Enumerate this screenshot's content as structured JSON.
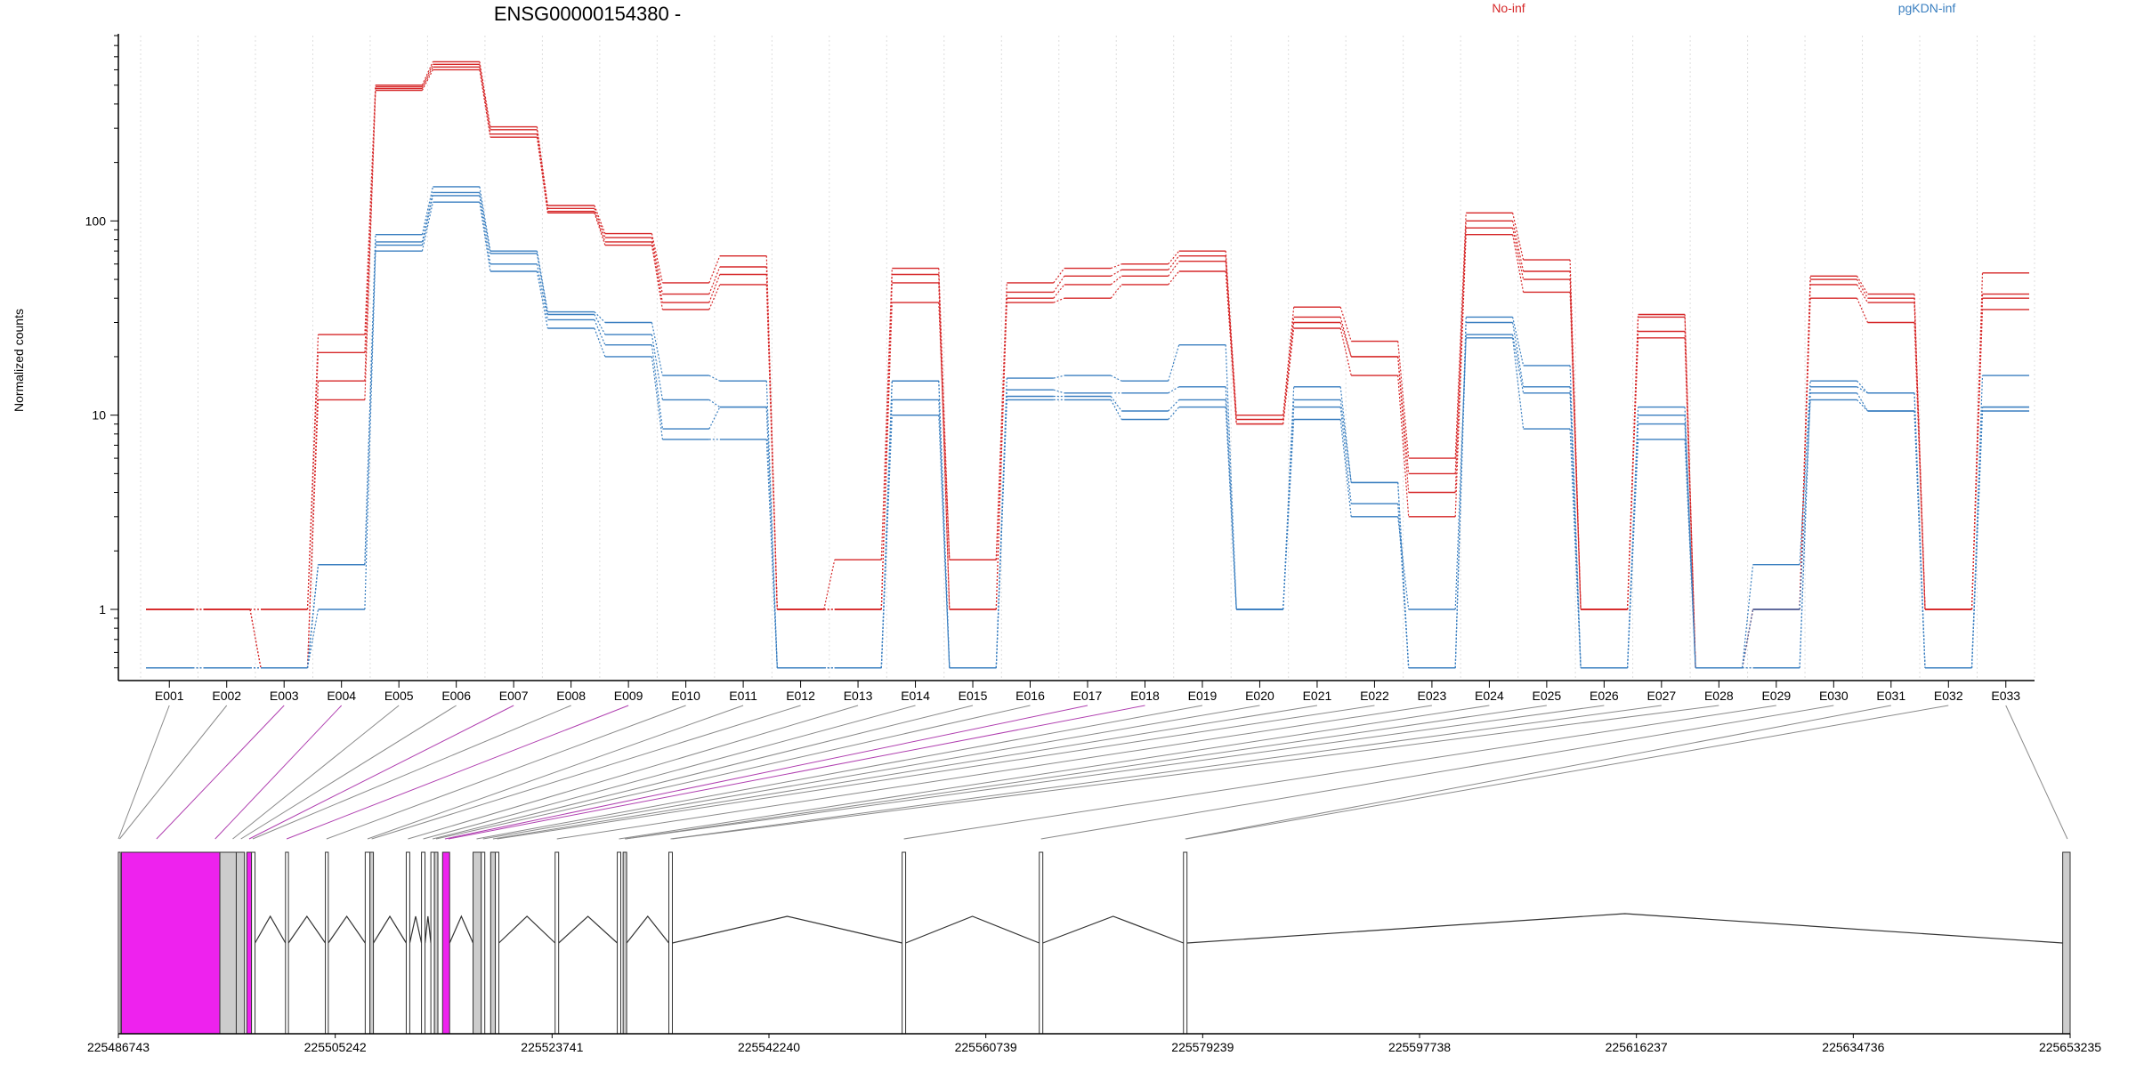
{
  "chart_data": {
    "type": "line",
    "title": "ENSG00000154380 -",
    "xlabel": "",
    "ylabel": "Normalized counts",
    "y_scale": "log",
    "ylim": [
      0.5,
      900
    ],
    "y_ticks": [
      {
        "value": 1,
        "label": "1"
      },
      {
        "value": 10,
        "label": "10"
      },
      {
        "value": 100,
        "label": "100"
      }
    ],
    "grid": "vertical-dotted",
    "legend_placement": "top",
    "legend": [
      {
        "label": "No-inf",
        "color": "#d62728"
      },
      {
        "label": "pgKDN-inf",
        "color": "#3a7fc0"
      }
    ],
    "categories": [
      "E001",
      "E002",
      "E003",
      "E004",
      "E005",
      "E006",
      "E007",
      "E008",
      "E009",
      "E010",
      "E011",
      "E012",
      "E013",
      "E014",
      "E015",
      "E016",
      "E017",
      "E018",
      "E019",
      "E020",
      "E021",
      "E022",
      "E023",
      "E024",
      "E025",
      "E026",
      "E027",
      "E028",
      "E029",
      "E030",
      "E031",
      "E032",
      "E033"
    ],
    "series": [
      {
        "group": "No-inf",
        "color": "#d62728",
        "values": [
          1,
          1,
          0.5,
          12,
          470,
          600,
          270,
          110,
          75,
          35,
          47,
          1,
          1,
          38,
          1.8,
          38,
          40,
          47,
          55,
          9,
          28,
          16,
          3,
          85,
          43,
          1,
          25,
          0.5,
          1,
          40,
          30,
          1,
          35
        ]
      },
      {
        "group": "No-inf",
        "color": "#d62728",
        "values": [
          1,
          1,
          0.5,
          15,
          480,
          620,
          280,
          112,
          78,
          38,
          53,
          1,
          1,
          48,
          1,
          40,
          47,
          52,
          62,
          9,
          30,
          20,
          4,
          92,
          50,
          1,
          27,
          0.5,
          1,
          47,
          38,
          1,
          40
        ]
      },
      {
        "group": "No-inf",
        "color": "#d62728",
        "values": [
          1,
          1,
          1,
          21,
          490,
          640,
          295,
          116,
          82,
          42,
          58,
          1,
          1,
          53,
          1,
          43,
          52,
          56,
          66,
          9.5,
          32,
          20,
          5,
          100,
          55,
          1,
          32,
          0.5,
          1,
          50,
          40,
          1,
          42
        ]
      },
      {
        "group": "No-inf",
        "color": "#d62728",
        "values": [
          1,
          1,
          1,
          26,
          500,
          660,
          305,
          120,
          86,
          48,
          66,
          1,
          1.8,
          57,
          1.8,
          48,
          57,
          60,
          70,
          10,
          36,
          24,
          6,
          110,
          63,
          1,
          33,
          0.5,
          1,
          52,
          42,
          1,
          54
        ]
      },
      {
        "group": "pgKDN-inf",
        "color": "#3a7fc0",
        "values": [
          0.5,
          0.5,
          0.5,
          1,
          70,
          125,
          55,
          28,
          20,
          7.5,
          7.5,
          0.5,
          0.5,
          10,
          0.5,
          12,
          12,
          9.5,
          11,
          1,
          9.5,
          3,
          1,
          25,
          8.5,
          0.5,
          7.5,
          0.5,
          1,
          12,
          10.5,
          0.5,
          10.5
        ]
      },
      {
        "group": "pgKDN-inf",
        "color": "#3a7fc0",
        "values": [
          0.5,
          0.5,
          0.5,
          1.7,
          75,
          135,
          60,
          31,
          23,
          8.5,
          11,
          0.5,
          0.5,
          12,
          0.5,
          12.5,
          12.5,
          10.5,
          12,
          1,
          11,
          3.5,
          0.5,
          26,
          13,
          0.5,
          9,
          0.5,
          0.5,
          13,
          10.5,
          0.5,
          11
        ]
      },
      {
        "group": "pgKDN-inf",
        "color": "#3a7fc0",
        "values": [
          0.5,
          0.5,
          0.5,
          1.7,
          78,
          140,
          68,
          33,
          26,
          12,
          11,
          0.5,
          0.5,
          15,
          0.5,
          13.5,
          13,
          13,
          14,
          1,
          12,
          4.5,
          0.5,
          30,
          14,
          0.5,
          10,
          0.5,
          0.5,
          14,
          13,
          0.5,
          11
        ]
      },
      {
        "group": "pgKDN-inf",
        "color": "#3a7fc0",
        "values": [
          0.5,
          0.5,
          0.5,
          1.7,
          85,
          150,
          70,
          34,
          30,
          16,
          15,
          0.5,
          0.5,
          15,
          0.5,
          15.5,
          16,
          15,
          23,
          1,
          14,
          4.5,
          0.5,
          32,
          18,
          0.5,
          11,
          0.5,
          1.7,
          15,
          13,
          0.5,
          16
        ]
      }
    ]
  },
  "gene_model": {
    "axis_ticks": [
      "225486743",
      "225505242",
      "225523741",
      "225542240",
      "225560739",
      "225579239",
      "225597738",
      "225616237",
      "225634736",
      "225653235"
    ],
    "range": [
      225486743,
      225653235
    ],
    "colors": {
      "tested": "#ffffff",
      "highlighted": "#ee22ee",
      "untested": "#cccccc",
      "line": "#333333"
    },
    "exons": [
      {
        "id": "E001",
        "start": 225486743,
        "end": 225486903,
        "kind": "tested"
      },
      {
        "id": "E002",
        "start": 225487000,
        "end": 225495400,
        "kind": "highlighted"
      },
      {
        "id": "E003",
        "start": 225495400,
        "end": 225496800,
        "kind": "untested"
      },
      {
        "id": "E004",
        "start": 225496800,
        "end": 225497500,
        "kind": "untested"
      },
      {
        "id": "E005",
        "start": 225497700,
        "end": 225498100,
        "kind": "highlighted"
      },
      {
        "id": "E006",
        "start": 225498100,
        "end": 225498400,
        "kind": "tested"
      },
      {
        "id": "E007",
        "start": 225501000,
        "end": 225501250,
        "kind": "tested"
      },
      {
        "id": "E008",
        "start": 225504400,
        "end": 225504650,
        "kind": "tested"
      },
      {
        "id": "E009",
        "start": 225507800,
        "end": 225508200,
        "kind": "tested"
      },
      {
        "id": "E010",
        "start": 225508200,
        "end": 225508500,
        "kind": "untested"
      },
      {
        "id": "E011",
        "start": 225511300,
        "end": 225511600,
        "kind": "tested"
      },
      {
        "id": "E012",
        "start": 225512600,
        "end": 225512900,
        "kind": "tested"
      },
      {
        "id": "E013",
        "start": 225513400,
        "end": 225513700,
        "kind": "tested"
      },
      {
        "id": "E014",
        "start": 225513700,
        "end": 225514000,
        "kind": "untested"
      },
      {
        "id": "E015",
        "start": 225514400,
        "end": 225515000,
        "kind": "highlighted"
      },
      {
        "id": "E016",
        "start": 225517000,
        "end": 225517700,
        "kind": "untested"
      },
      {
        "id": "E017",
        "start": 225517700,
        "end": 225518000,
        "kind": "tested"
      },
      {
        "id": "E018",
        "start": 225518500,
        "end": 225518900,
        "kind": "untested"
      },
      {
        "id": "E019",
        "start": 225518900,
        "end": 225519200,
        "kind": "tested"
      },
      {
        "id": "E020",
        "start": 225524000,
        "end": 225524300,
        "kind": "tested"
      },
      {
        "id": "E021",
        "start": 225529300,
        "end": 225529600,
        "kind": "tested"
      },
      {
        "id": "E022",
        "start": 225529800,
        "end": 225530100,
        "kind": "untested"
      },
      {
        "id": "E023",
        "start": 225533700,
        "end": 225534000,
        "kind": "tested"
      },
      {
        "id": "E024",
        "start": 225553600,
        "end": 225553900,
        "kind": "tested"
      },
      {
        "id": "E025",
        "start": 225565300,
        "end": 225565600,
        "kind": "tested"
      },
      {
        "id": "E026",
        "start": 225577600,
        "end": 225577900,
        "kind": "tested"
      },
      {
        "id": "E027",
        "start": 225652600,
        "end": 225653235,
        "kind": "untested"
      }
    ],
    "introns": [
      [
        225498400,
        225501000
      ],
      [
        225501250,
        225504400
      ],
      [
        225504650,
        225507800
      ],
      [
        225508500,
        225511300
      ],
      [
        225511600,
        225512600
      ],
      [
        225512900,
        225513400
      ],
      [
        225515000,
        225517000
      ],
      [
        225519200,
        225524000
      ],
      [
        225524300,
        225529300
      ],
      [
        225530100,
        225533700
      ],
      [
        225534000,
        225553600
      ],
      [
        225553900,
        225565300
      ],
      [
        225565600,
        225577600
      ],
      [
        225577900,
        225652600
      ]
    ],
    "connectors": [
      {
        "bin": "E001",
        "to": 225486743,
        "kind": "tested"
      },
      {
        "bin": "E002",
        "to": 225486850,
        "kind": "tested"
      },
      {
        "bin": "E003",
        "to": 225490000,
        "kind": "highlighted"
      },
      {
        "bin": "E004",
        "to": 225495000,
        "kind": "highlighted"
      },
      {
        "bin": "E005",
        "to": 225496500,
        "kind": "tested"
      },
      {
        "bin": "E006",
        "to": 225497200,
        "kind": "tested"
      },
      {
        "bin": "E007",
        "to": 225497900,
        "kind": "highlighted"
      },
      {
        "bin": "E008",
        "to": 225498200,
        "kind": "tested"
      },
      {
        "bin": "E009",
        "to": 225501100,
        "kind": "highlighted"
      },
      {
        "bin": "E010",
        "to": 225504500,
        "kind": "tested"
      },
      {
        "bin": "E011",
        "to": 225508000,
        "kind": "tested"
      },
      {
        "bin": "E012",
        "to": 225508350,
        "kind": "tested"
      },
      {
        "bin": "E013",
        "to": 225511450,
        "kind": "tested"
      },
      {
        "bin": "E014",
        "to": 225512750,
        "kind": "tested"
      },
      {
        "bin": "E015",
        "to": 225513550,
        "kind": "tested"
      },
      {
        "bin": "E016",
        "to": 225513850,
        "kind": "tested"
      },
      {
        "bin": "E017",
        "to": 225514600,
        "kind": "highlighted"
      },
      {
        "bin": "E018",
        "to": 225514900,
        "kind": "highlighted"
      },
      {
        "bin": "E019",
        "to": 225517300,
        "kind": "tested"
      },
      {
        "bin": "E020",
        "to": 225517850,
        "kind": "tested"
      },
      {
        "bin": "E021",
        "to": 225518700,
        "kind": "tested"
      },
      {
        "bin": "E022",
        "to": 225519050,
        "kind": "tested"
      },
      {
        "bin": "E023",
        "to": 225524150,
        "kind": "tested"
      },
      {
        "bin": "E024",
        "to": 225529450,
        "kind": "tested"
      },
      {
        "bin": "E025",
        "to": 225529950,
        "kind": "tested"
      },
      {
        "bin": "E026",
        "to": 225530000,
        "kind": "tested"
      },
      {
        "bin": "E027",
        "to": 225533850,
        "kind": "tested"
      },
      {
        "bin": "E028",
        "to": 225534000,
        "kind": "tested"
      },
      {
        "bin": "E029",
        "to": 225553750,
        "kind": "tested"
      },
      {
        "bin": "E030",
        "to": 225565450,
        "kind": "tested"
      },
      {
        "bin": "E031",
        "to": 225577750,
        "kind": "tested"
      },
      {
        "bin": "E032",
        "to": 225577850,
        "kind": "tested"
      },
      {
        "bin": "E033",
        "to": 225653000,
        "kind": "tested"
      }
    ]
  }
}
